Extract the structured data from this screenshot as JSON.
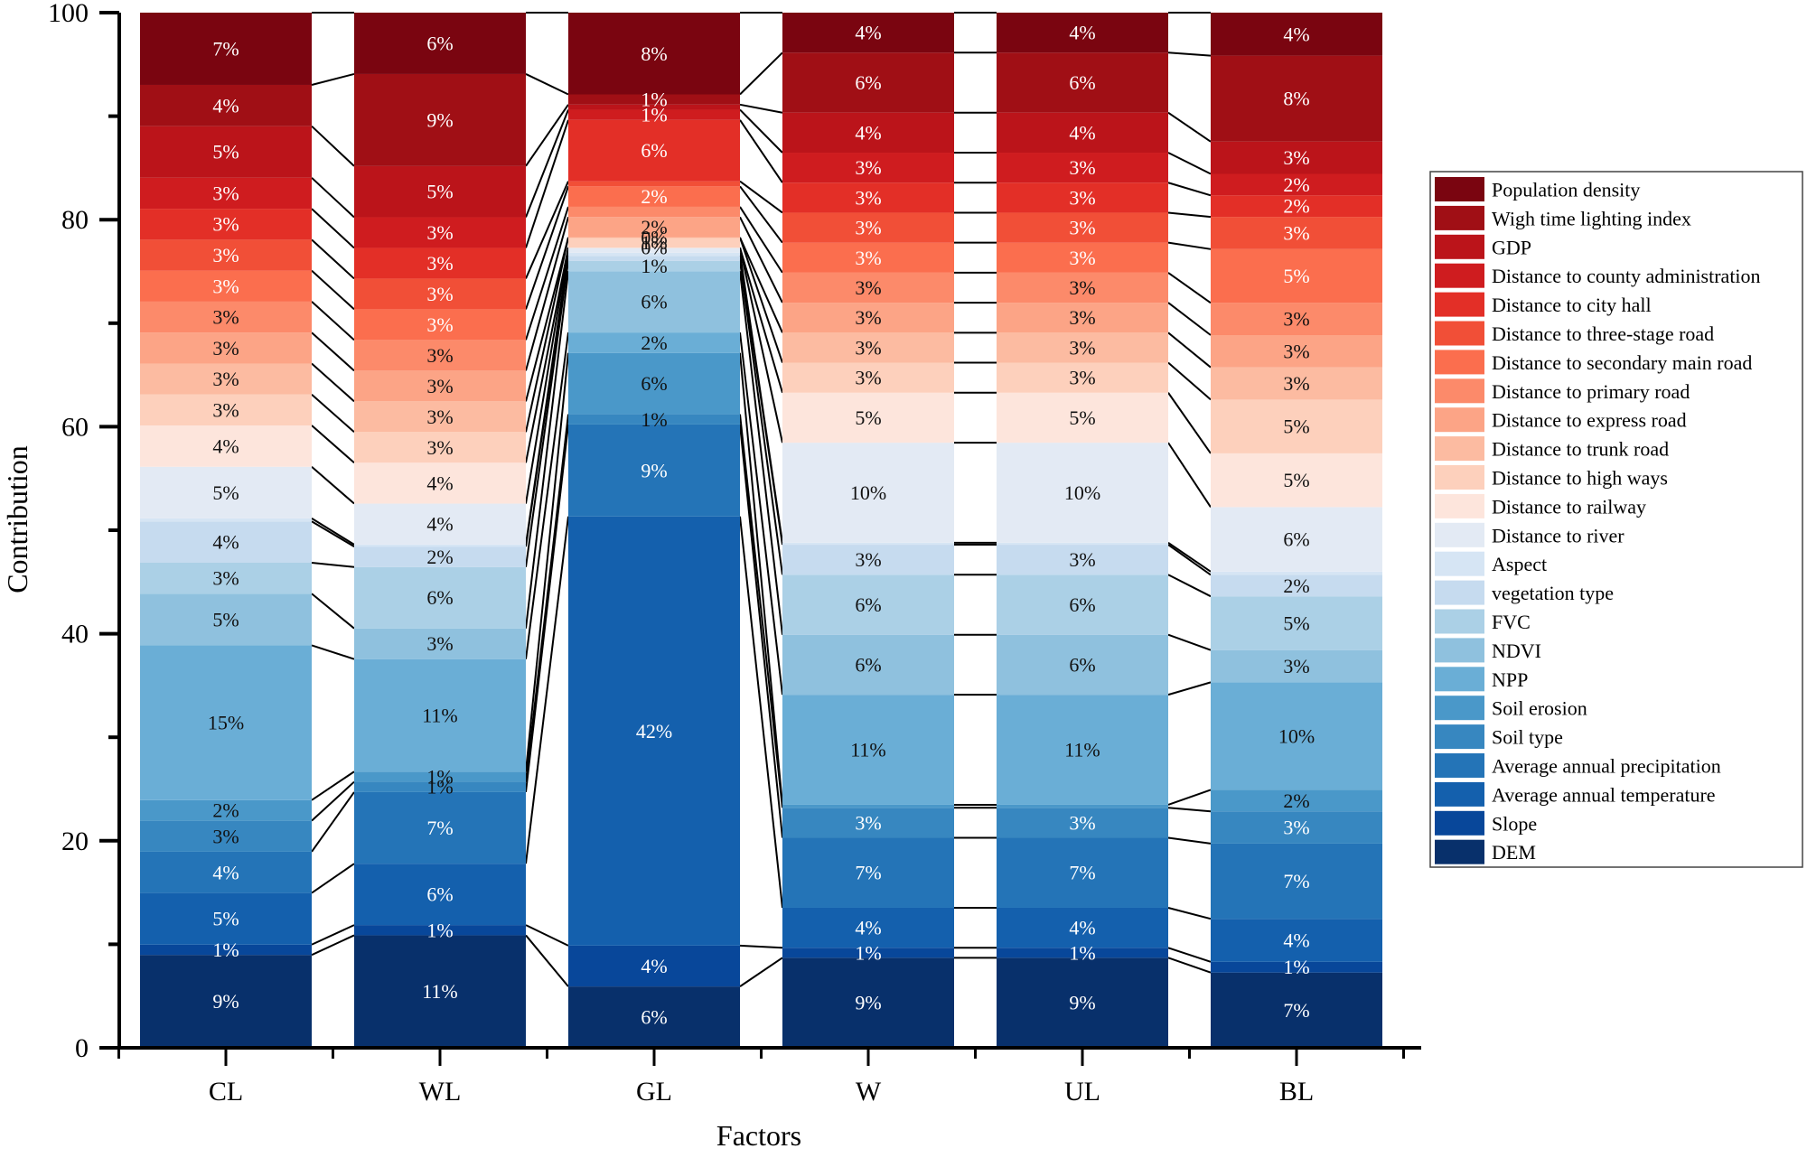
{
  "chart_data": {
    "type": "bar",
    "stacked": true,
    "normalized_percent": true,
    "title": "",
    "xlabel": "Factors",
    "ylabel": "Contribution",
    "ylim": [
      0,
      100
    ],
    "yticks": [
      0,
      20,
      40,
      60,
      80,
      100
    ],
    "categories": [
      "CL",
      "WL",
      "GL",
      "W",
      "UL",
      "BL"
    ],
    "legend_position": "right",
    "connector_lines": true,
    "series": [
      {
        "name": "DEM",
        "color": "#08306b",
        "values": [
          9,
          11,
          6,
          9,
          9,
          7
        ],
        "labels": [
          "9%",
          "11%",
          "6%",
          "9%",
          "9%",
          "7%"
        ]
      },
      {
        "name": "Slope",
        "color": "#08479a",
        "values": [
          1,
          1,
          4,
          1,
          1,
          1
        ],
        "labels": [
          "1%",
          "1%",
          "4%",
          "1%",
          "1%",
          "1%"
        ]
      },
      {
        "name": "Average annual temperature",
        "color": "#1460ad",
        "values": [
          5,
          6,
          42,
          4,
          4,
          4
        ],
        "labels": [
          "5%",
          "6%",
          "42%",
          "4%",
          "4%",
          "4%"
        ]
      },
      {
        "name": "Average annual precipitation",
        "color": "#2474b7",
        "values": [
          4,
          7,
          9,
          7,
          7,
          7
        ],
        "labels": [
          "4%",
          "7%",
          "9%",
          "7%",
          "7%",
          "7%"
        ]
      },
      {
        "name": "Soil type",
        "color": "#3787c0",
        "values": [
          3,
          1,
          1,
          3,
          3,
          3
        ],
        "labels": [
          "3%",
          "1%",
          "1%",
          "3%",
          "3%",
          "3%"
        ]
      },
      {
        "name": "Soil erosion",
        "color": "#4a98c9",
        "values": [
          2,
          1,
          6,
          0.3,
          0.3,
          2
        ],
        "labels": [
          "2%",
          "1%",
          "6%",
          "",
          "",
          "2%"
        ]
      },
      {
        "name": "NPP",
        "color": "#6aaed6",
        "values": [
          15,
          11,
          2,
          11,
          11,
          10
        ],
        "labels": [
          "15%",
          "11%",
          "2%",
          "11%",
          "11%",
          "10%"
        ]
      },
      {
        "name": "NDVI",
        "color": "#8fc1de",
        "values": [
          5,
          3,
          6,
          6,
          6,
          3
        ],
        "labels": [
          "5%",
          "3%",
          "6%",
          "6%",
          "6%",
          "3%"
        ]
      },
      {
        "name": "FVC",
        "color": "#abd0e6",
        "values": [
          3,
          6,
          1,
          6,
          6,
          5
        ],
        "labels": [
          "3%",
          "6%",
          "1%",
          "6%",
          "6%",
          "5%"
        ]
      },
      {
        "name": "vegetation type",
        "color": "#c6dbef",
        "values": [
          4,
          2,
          0.5,
          3,
          3,
          2
        ],
        "labels": [
          "4%",
          "2%",
          "",
          "3%",
          "3%",
          "2%"
        ]
      },
      {
        "name": "Aspect",
        "color": "#d6e5f4",
        "values": [
          0.3,
          0.2,
          0.3,
          0.2,
          0.2,
          0.3
        ],
        "labels": [
          "",
          "",
          "",
          "",
          "",
          ""
        ]
      },
      {
        "name": "Distance to river",
        "color": "#e3eaf4",
        "values": [
          5,
          4,
          0.5,
          10,
          10,
          6
        ],
        "labels": [
          "5%",
          "4%",
          "",
          "10%",
          "10%",
          "6%"
        ]
      },
      {
        "name": "Distance to railway",
        "color": "#fde5dc",
        "values": [
          4,
          4,
          0,
          5,
          5,
          5
        ],
        "labels": [
          "4%",
          "4%",
          "0%",
          "5%",
          "5%",
          "5%"
        ]
      },
      {
        "name": "Distance to high ways",
        "color": "#fdd0bc",
        "values": [
          3,
          3,
          1,
          3,
          3,
          5
        ],
        "labels": [
          "3%",
          "3%",
          "1%",
          "3%",
          "3%",
          "5%"
        ]
      },
      {
        "name": "Distance to trunk road",
        "color": "#fcbba1",
        "values": [
          3,
          3,
          0,
          3,
          3,
          3
        ],
        "labels": [
          "3%",
          "3%",
          "0%",
          "3%",
          "3%",
          "3%"
        ]
      },
      {
        "name": "Distance to express road",
        "color": "#fca486",
        "values": [
          3,
          3,
          2,
          3,
          3,
          3
        ],
        "labels": [
          "3%",
          "3%",
          "2%",
          "3%",
          "3%",
          "3%"
        ]
      },
      {
        "name": "Distance to primary road",
        "color": "#fc8a6a",
        "values": [
          3,
          3,
          1,
          3,
          3,
          3
        ],
        "labels": [
          "3%",
          "3%",
          "",
          "3%",
          "3%",
          "3%"
        ]
      },
      {
        "name": "Distance to secondary main road",
        "color": "#fb6e4e",
        "values": [
          3,
          3,
          2,
          3,
          3,
          5
        ],
        "labels": [
          "3%",
          "3%",
          "2%",
          "3%",
          "3%",
          "5%"
        ]
      },
      {
        "name": "Distance to three-stage road",
        "color": "#f14f37",
        "values": [
          3,
          3,
          0.5,
          3,
          3,
          3
        ],
        "labels": [
          "3%",
          "3%",
          "",
          "3%",
          "3%",
          "3%"
        ]
      },
      {
        "name": "Distance to city hall",
        "color": "#e32f27",
        "values": [
          3,
          3,
          6,
          3,
          3,
          2
        ],
        "labels": [
          "3%",
          "3%",
          "6%",
          "3%",
          "3%",
          "2%"
        ]
      },
      {
        "name": "Distance to county administration",
        "color": "#cf1c1f",
        "values": [
          3,
          3,
          1,
          3,
          3,
          2
        ],
        "labels": [
          "3%",
          "3%",
          "1%",
          "3%",
          "3%",
          "2%"
        ]
      },
      {
        "name": "GDP",
        "color": "#bb141a",
        "values": [
          5,
          5,
          0.5,
          4,
          4,
          3
        ],
        "labels": [
          "5%",
          "5%",
          "",
          "4%",
          "4%",
          "3%"
        ]
      },
      {
        "name": "Wigh time lighting index",
        "color": "#a00f15",
        "values": [
          4,
          9,
          1,
          6,
          6,
          8
        ],
        "labels": [
          "4%",
          "9%",
          "1%",
          "6%",
          "6%",
          "8%"
        ]
      },
      {
        "name": "Population density",
        "color": "#7a0510",
        "values": [
          7,
          6,
          8,
          4,
          4,
          4
        ],
        "labels": [
          "7%",
          "6%",
          "8%",
          "4%",
          "4%",
          "4%"
        ]
      }
    ]
  }
}
